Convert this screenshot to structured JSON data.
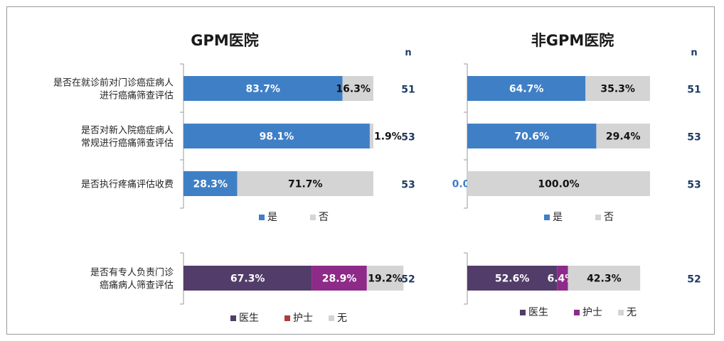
{
  "colors": {
    "yes": "#3f7fc6",
    "no": "#d4d4d4",
    "doctor": "#523c69",
    "nurse": "#8e2a88",
    "nurse_legend": "#b23b3b",
    "none": "#d4d4d4",
    "n_text": "#1f3b66"
  },
  "chart_data": [
    {
      "type": "bar",
      "orientation": "horizontal",
      "stacked": "percent",
      "title": "GPM医院",
      "n_header": "n",
      "categories": [
        "是否在就诊前对门诊癌症病人进行癌痛筛查评估",
        "是否对新入院癌症病人常规进行癌痛筛查评估",
        "是否执行疼痛评估收费"
      ],
      "category_lines": [
        [
          "是否在就诊前对门诊癌症病人",
          "进行癌痛筛查评估"
        ],
        [
          "是否对新入院癌症病人",
          "常规进行癌痛筛查评估"
        ],
        [
          "是否执行疼痛评估收费"
        ]
      ],
      "series": [
        {
          "name": "是",
          "values": [
            83.7,
            98.1,
            28.3
          ],
          "labels": [
            "83.7%",
            "98.1%",
            "28.3%"
          ]
        },
        {
          "name": "否",
          "values": [
            16.3,
            1.9,
            71.7
          ],
          "labels": [
            "16.3%",
            "1.9%",
            "71.7%"
          ]
        }
      ],
      "n": [
        "51",
        "53",
        "53"
      ],
      "legend": [
        "是",
        "否"
      ],
      "legend_position": "bottom"
    },
    {
      "type": "bar",
      "orientation": "horizontal",
      "stacked": "percent",
      "title": "非GPM医院",
      "n_header": "n",
      "series": [
        {
          "name": "是",
          "values": [
            64.7,
            70.6,
            0.0
          ],
          "labels": [
            "64.7%",
            "70.6%",
            "0.0%"
          ]
        },
        {
          "name": "否",
          "values": [
            35.3,
            29.4,
            100.0
          ],
          "labels": [
            "35.3%",
            "29.4%",
            "100.0%"
          ]
        }
      ],
      "n": [
        "51",
        "53",
        "53"
      ],
      "legend": [
        "是",
        "否"
      ],
      "legend_position": "bottom"
    },
    {
      "type": "bar",
      "orientation": "horizontal",
      "stacked": "percent",
      "categories": [
        "是否有专人负责门诊癌痛病人筛查评估"
      ],
      "category_lines": [
        [
          "是否有专人负责门诊",
          "癌痛病人筛查评估"
        ]
      ],
      "series": [
        {
          "name": "医生",
          "values": [
            67.3
          ],
          "labels": [
            "67.3%"
          ]
        },
        {
          "name": "护士",
          "values": [
            28.9
          ],
          "labels": [
            "28.9%"
          ]
        },
        {
          "name": "无",
          "values": [
            19.2
          ],
          "labels": [
            "19.2%"
          ]
        }
      ],
      "n": [
        "52"
      ],
      "legend": [
        "医生",
        "护士",
        "无"
      ],
      "legend_position": "bottom"
    },
    {
      "type": "bar",
      "orientation": "horizontal",
      "stacked": "percent",
      "series": [
        {
          "name": "医生",
          "values": [
            52.6
          ],
          "labels": [
            "52.6%"
          ]
        },
        {
          "name": "护士",
          "values": [
            6.4
          ],
          "labels": [
            "6.4%"
          ]
        },
        {
          "name": "无",
          "values": [
            42.3
          ],
          "labels": [
            "42.3%"
          ]
        }
      ],
      "n": [
        "52"
      ],
      "legend": [
        "医生",
        "护士",
        "无"
      ],
      "legend_position": "bottom"
    }
  ]
}
